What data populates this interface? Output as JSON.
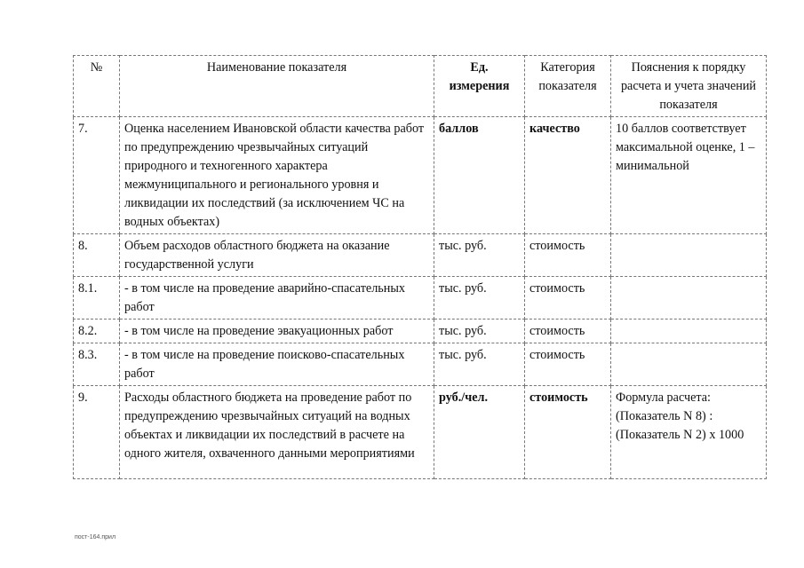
{
  "table": {
    "headers": [
      "№",
      "Наименование показателя",
      "Ед. измерения",
      "Категория показателя",
      "Пояснения к порядку расчета и учета значений показателя"
    ],
    "rows": [
      {
        "num": "7.",
        "name": "Оценка населением Ивановской области качества работ по предупреждению чрезвычайных ситуаций природного и техногенного характера межмуниципального и регионального уровня и ликвидации их последствий (за исключением ЧС на водных объектах)",
        "unit": "баллов",
        "category": "качество",
        "note": "10 баллов соответствует максимальной оценке, 1 – минимальной"
      },
      {
        "num": "8.",
        "name": "Объем расходов областного бюджета на оказание государственной услуги",
        "unit": "тыс. руб.",
        "category": "стоимость",
        "note": ""
      },
      {
        "num": "8.1.",
        "name": "- в том числе на проведение аварийно-спасательных работ",
        "unit": "тыс. руб.",
        "category": "стоимость",
        "note": ""
      },
      {
        "num": "8.2.",
        "name": "- в том числе на проведение эвакуационных работ",
        "unit": "тыс. руб.",
        "category": "стоимость",
        "note": ""
      },
      {
        "num": "8.3.",
        "name": "- в том числе на проведение поисково-спасательных работ",
        "unit": "тыс. руб.",
        "category": "стоимость",
        "note": ""
      },
      {
        "num": "9.",
        "name": "Расходы областного бюджета на проведение работ по предупреждению чрезвычайных ситуаций на водных объектах и ликвидации их последствий в расчете на одного жителя, охваченного данными мероприятиями",
        "unit": "руб./чел.",
        "category": "стоимость",
        "note": "Формула расчета: (Показатель N 8) : (Показатель N 2) x 1000"
      }
    ]
  },
  "footer": "пост-164.прил"
}
